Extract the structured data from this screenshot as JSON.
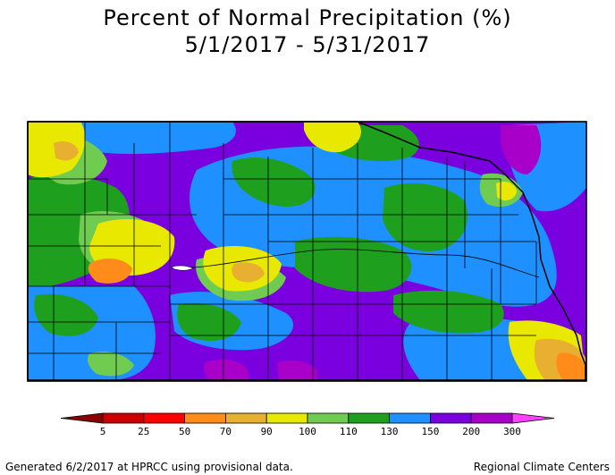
{
  "title": "Percent of Normal Precipitation (%)",
  "subtitle": "5/1/2017 - 5/31/2017",
  "legend": {
    "labels": [
      "5",
      "25",
      "50",
      "70",
      "90",
      "100",
      "110",
      "130",
      "150",
      "200",
      "300"
    ],
    "colors": [
      "#8b0000",
      "#cc0000",
      "#ff0000",
      "#ff8c1a",
      "#e8b030",
      "#e8e800",
      "#70cc50",
      "#1ea01e",
      "#1e90ff",
      "#7a00e0",
      "#a800c8",
      "#ff40ff"
    ]
  },
  "colors": {
    "yellow": "#e8e800",
    "light_green": "#70cc50",
    "green": "#1ea01e",
    "blue": "#1e90ff",
    "purple": "#7a00e0",
    "magenta_purple": "#a800c8",
    "orange": "#ff8c1a",
    "gold": "#e8b030"
  },
  "footer": {
    "left": "Generated 6/2/2017 at HPRCC using provisional data.",
    "right": "Regional Climate Centers"
  }
}
